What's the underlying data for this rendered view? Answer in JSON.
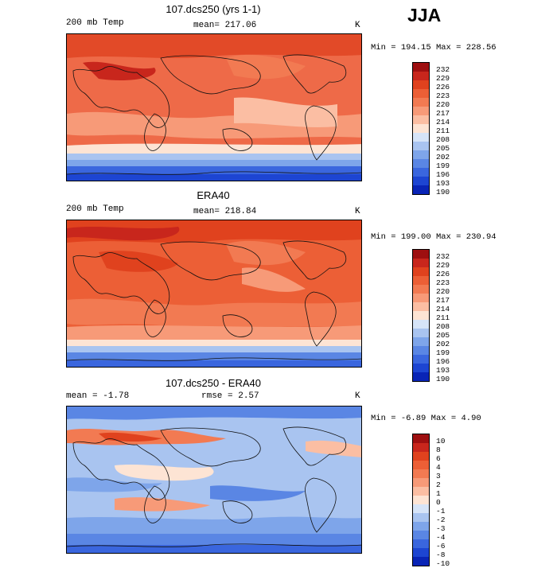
{
  "season": "JJA",
  "panels": [
    {
      "id": "model",
      "title": "107.dcs250 (yrs 1-1)",
      "left_label": "200 mb Temp",
      "mean_label": "mean=",
      "mean_value": "217.06",
      "rmse_label": "",
      "rmse_value": "",
      "units": "K",
      "min_label": "Min =",
      "min_value": "194.15",
      "max_label": "Max =",
      "max_value": "228.56",
      "levels": [
        "232",
        "229",
        "226",
        "223",
        "220",
        "217",
        "214",
        "211",
        "208",
        "205",
        "202",
        "199",
        "196",
        "193",
        "190"
      ],
      "colors": [
        "#9e0f10",
        "#c8261c",
        "#e0421e",
        "#ec5f36",
        "#f27a52",
        "#f79a78",
        "#fbbea3",
        "#fde4d4",
        "#d6e4f8",
        "#a9c4f0",
        "#7ea5ea",
        "#5a86e4",
        "#3a66de",
        "#1d45d2",
        "#0924b6"
      ]
    },
    {
      "id": "obs",
      "title": "ERA40",
      "left_label": "200 mb Temp",
      "mean_label": "mean=",
      "mean_value": "218.84",
      "rmse_label": "",
      "rmse_value": "",
      "units": "K",
      "min_label": "Min =",
      "min_value": "199.00",
      "max_label": "Max =",
      "max_value": "230.94",
      "levels": [
        "232",
        "229",
        "226",
        "223",
        "220",
        "217",
        "214",
        "211",
        "208",
        "205",
        "202",
        "199",
        "196",
        "193",
        "190"
      ],
      "colors": [
        "#9e0f10",
        "#c8261c",
        "#e0421e",
        "#ec5f36",
        "#f27a52",
        "#f79a78",
        "#fbbea3",
        "#fde4d4",
        "#d6e4f8",
        "#a9c4f0",
        "#7ea5ea",
        "#5a86e4",
        "#3a66de",
        "#1d45d2",
        "#0924b6"
      ]
    },
    {
      "id": "diff",
      "title": "107.dcs250 - ERA40",
      "left_label": "",
      "mean_label": "mean =",
      "mean_value": "-1.78",
      "rmse_label": "rmse =",
      "rmse_value": "2.57",
      "units": "K",
      "min_label": "Min =",
      "min_value": "-6.89",
      "max_label": "Max =",
      "max_value": "4.90",
      "levels": [
        "10",
        "8",
        "6",
        "4",
        "3",
        "2",
        "1",
        "0",
        "-1",
        "-2",
        "-3",
        "-4",
        "-6",
        "-8",
        "-10"
      ],
      "colors": [
        "#9e0f10",
        "#c8261c",
        "#e0421e",
        "#ec5f36",
        "#f27a52",
        "#f79a78",
        "#fbbea3",
        "#fde4d4",
        "#d6e4f8",
        "#a9c4f0",
        "#7ea5ea",
        "#5a86e4",
        "#3a66de",
        "#1d45d2",
        "#0924b6"
      ]
    }
  ]
}
